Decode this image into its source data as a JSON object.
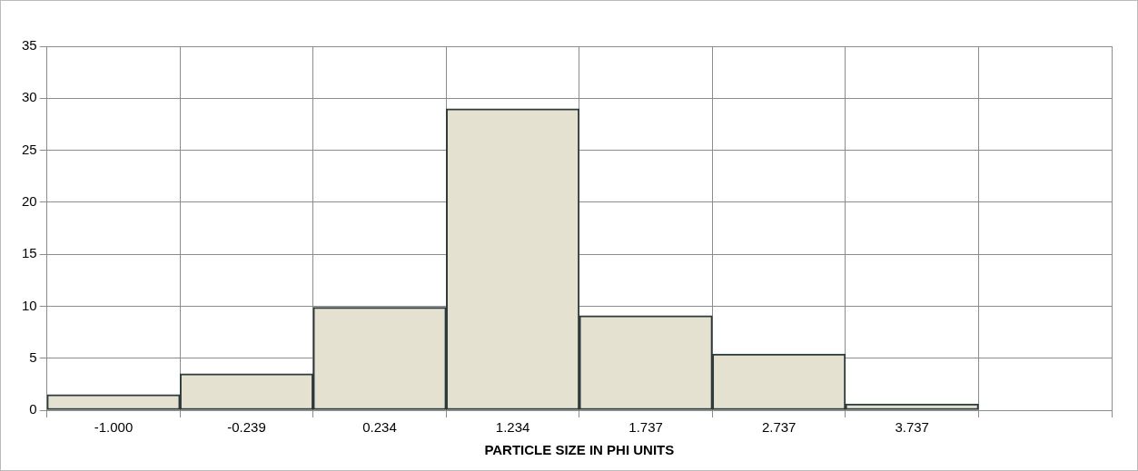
{
  "chart_data": {
    "type": "bar",
    "xlabel": "PARTICLE SIZE IN PHI UNITS",
    "categories": [
      "-1.000",
      "-0.239",
      "0.234",
      "1.234",
      "1.737",
      "2.737",
      "3.737",
      null
    ],
    "values": [
      1.5,
      3.5,
      9.9,
      29.0,
      9.1,
      5.4,
      0.6,
      null
    ],
    "color": "#e4e1d1",
    "ylim": [
      0,
      35
    ],
    "yticks": [
      0,
      5,
      10,
      15,
      20,
      25,
      30,
      35
    ],
    "grid": true,
    "legend": false
  }
}
